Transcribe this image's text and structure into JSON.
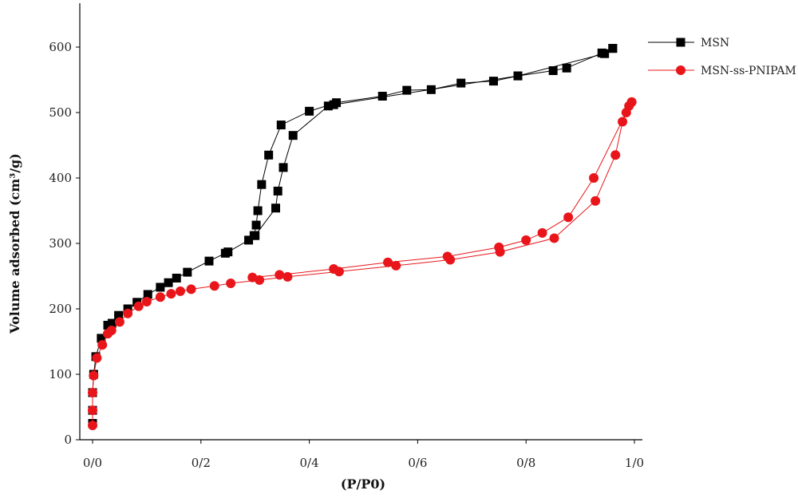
{
  "chart_data": {
    "type": "scatter",
    "xlabel": "(P/P0)",
    "ylabel": "Volume adsorbed (cm³/g)",
    "xlim": [
      0,
      1.0
    ],
    "ylim": [
      0,
      650
    ],
    "x_ticks": [
      0,
      0.2,
      0.4,
      0.6,
      0.8,
      1.0
    ],
    "x_tick_labels": [
      "0/0",
      "0/2",
      "0/4",
      "0/6",
      "0/8",
      "1/0"
    ],
    "y_ticks": [
      0,
      100,
      200,
      300,
      400,
      500,
      600
    ],
    "y_tick_labels": [
      "0",
      "100",
      "200",
      "300",
      "400",
      "500",
      "600"
    ],
    "grid": false,
    "legend_position": "top-right",
    "series": [
      {
        "name": "MSN",
        "color": "#000000",
        "marker": "square",
        "adsorption": [
          [
            0.0,
            25
          ],
          [
            0.0,
            45
          ],
          [
            0.0,
            72
          ],
          [
            0.002,
            100
          ],
          [
            0.006,
            127
          ],
          [
            0.016,
            155
          ],
          [
            0.028,
            175
          ],
          [
            0.036,
            178
          ],
          [
            0.048,
            190
          ],
          [
            0.065,
            200
          ],
          [
            0.082,
            210
          ],
          [
            0.102,
            222
          ],
          [
            0.125,
            233
          ],
          [
            0.14,
            240
          ],
          [
            0.155,
            247
          ],
          [
            0.175,
            256
          ],
          [
            0.215,
            273
          ],
          [
            0.245,
            285
          ],
          [
            0.25,
            287
          ],
          [
            0.288,
            305
          ],
          [
            0.298,
            312
          ],
          [
            0.302,
            328
          ],
          [
            0.305,
            350
          ],
          [
            0.312,
            390
          ],
          [
            0.325,
            435
          ],
          [
            0.348,
            481
          ],
          [
            0.4,
            502
          ],
          [
            0.45,
            515
          ],
          [
            0.535,
            525
          ],
          [
            0.58,
            534
          ],
          [
            0.625,
            535
          ],
          [
            0.68,
            545
          ],
          [
            0.74,
            548
          ],
          [
            0.785,
            556
          ],
          [
            0.85,
            564
          ],
          [
            0.875,
            568
          ],
          [
            0.94,
            591
          ],
          [
            0.96,
            598
          ]
        ],
        "desorption": [
          [
            0.96,
            598
          ],
          [
            0.945,
            590
          ],
          [
            0.785,
            556
          ],
          [
            0.445,
            512
          ],
          [
            0.435,
            510
          ],
          [
            0.37,
            465
          ],
          [
            0.352,
            416
          ],
          [
            0.342,
            380
          ],
          [
            0.338,
            354
          ],
          [
            0.3,
            312
          ]
        ]
      },
      {
        "name": "MSN-ss-PNIPAM",
        "color": "#e8161b",
        "marker": "circle",
        "adsorption": [
          [
            0.0,
            22
          ],
          [
            0.0,
            45
          ],
          [
            0.0,
            72
          ],
          [
            0.002,
            98
          ],
          [
            0.008,
            125
          ],
          [
            0.018,
            145
          ],
          [
            0.028,
            162
          ],
          [
            0.035,
            167
          ],
          [
            0.05,
            180
          ],
          [
            0.065,
            193
          ],
          [
            0.085,
            204
          ],
          [
            0.1,
            211
          ],
          [
            0.125,
            218
          ],
          [
            0.145,
            223
          ],
          [
            0.162,
            227
          ],
          [
            0.182,
            230
          ],
          [
            0.225,
            235
          ],
          [
            0.255,
            239
          ],
          [
            0.308,
            244
          ],
          [
            0.36,
            249
          ],
          [
            0.455,
            257
          ],
          [
            0.56,
            266
          ],
          [
            0.66,
            275
          ],
          [
            0.752,
            287
          ],
          [
            0.852,
            308
          ],
          [
            0.928,
            365
          ],
          [
            0.965,
            435
          ],
          [
            0.978,
            486
          ],
          [
            0.995,
            516
          ]
        ],
        "desorption": [
          [
            0.995,
            516
          ],
          [
            0.99,
            510
          ],
          [
            0.985,
            500
          ],
          [
            0.925,
            400
          ],
          [
            0.878,
            340
          ],
          [
            0.83,
            316
          ],
          [
            0.8,
            305
          ],
          [
            0.75,
            294
          ],
          [
            0.655,
            280
          ],
          [
            0.545,
            271
          ],
          [
            0.445,
            261
          ],
          [
            0.345,
            252
          ],
          [
            0.295,
            248
          ]
        ]
      }
    ]
  }
}
